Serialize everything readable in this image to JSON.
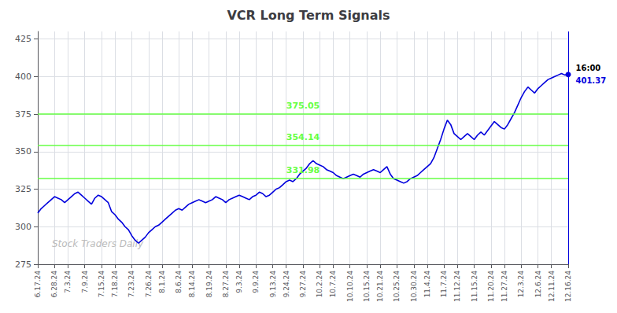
{
  "chart_data": {
    "type": "line",
    "title": "VCR Long Term Signals",
    "color": "#0000dd",
    "grid": true,
    "ylim": [
      275,
      430
    ],
    "yticks": [
      275,
      300,
      325,
      350,
      375,
      400,
      425
    ],
    "watermark": "Stock Traders Daily",
    "hlines": [
      {
        "value": 331.98,
        "label": "331.98",
        "color": "#66ff44"
      },
      {
        "value": 354.14,
        "label": "354.14",
        "color": "#66ff44"
      },
      {
        "value": 375.05,
        "label": "375.05",
        "color": "#66ff44"
      }
    ],
    "end": {
      "value": 401.37,
      "label": "401.37",
      "time": "16:00"
    },
    "categories": [
      "6.17.24",
      null,
      null,
      null,
      null,
      "6.28.24",
      null,
      null,
      null,
      "7.3.24",
      null,
      null,
      null,
      null,
      "7.9.24",
      null,
      null,
      null,
      null,
      "7.15.24",
      null,
      null,
      null,
      "7.18.24",
      null,
      null,
      null,
      null,
      "7.23.24",
      null,
      null,
      null,
      null,
      "7.26.24",
      null,
      null,
      null,
      "8.1.24",
      null,
      null,
      null,
      null,
      "8.6.24",
      null,
      null,
      null,
      "8.14.24",
      null,
      null,
      null,
      null,
      "8.19.24",
      null,
      null,
      null,
      null,
      "8.27.24",
      null,
      null,
      null,
      "9.3.24",
      null,
      null,
      null,
      null,
      "9.9.24",
      null,
      null,
      null,
      null,
      "9.13.24",
      null,
      null,
      null,
      "9.24.24",
      null,
      null,
      null,
      null,
      "9.27.24",
      null,
      null,
      null,
      null,
      "10.2.24",
      null,
      null,
      null,
      "10.7.24",
      null,
      null,
      null,
      null,
      "10.10.24",
      null,
      null,
      null,
      null,
      "10.15.24",
      null,
      null,
      null,
      "10.21.24",
      null,
      null,
      null,
      null,
      "10.25.24",
      null,
      null,
      null,
      null,
      "10.30.24",
      null,
      null,
      null,
      "11.4.24",
      null,
      null,
      null,
      null,
      "11.7.24",
      null,
      null,
      null,
      "11.12.24",
      null,
      null,
      null,
      null,
      "11.15.24",
      null,
      null,
      null,
      null,
      "11.20.24",
      null,
      null,
      null,
      "11.27.24",
      null,
      null,
      null,
      null,
      "12.3.24",
      null,
      null,
      null,
      null,
      "12.6.24",
      null,
      null,
      null,
      "12.11.24",
      null,
      null,
      null,
      null,
      "12.16.24"
    ],
    "values": [
      309,
      312,
      314,
      316,
      318,
      320,
      319,
      318,
      316,
      318,
      320,
      322,
      323,
      321,
      319,
      317,
      315,
      319,
      321,
      320,
      318,
      316,
      310,
      308,
      305,
      303,
      300,
      298,
      294,
      291,
      289,
      291,
      293,
      296,
      298,
      300,
      301,
      303,
      305,
      307,
      309,
      311,
      312,
      311,
      313,
      315,
      316,
      317,
      318,
      317,
      316,
      317,
      318,
      320,
      319,
      318,
      316,
      318,
      319,
      320,
      321,
      320,
      319,
      318,
      320,
      321,
      323,
      322,
      320,
      321,
      323,
      325,
      326,
      328,
      330,
      331,
      330,
      332,
      335,
      337,
      339,
      342,
      344,
      342,
      341,
      340,
      338,
      337,
      336,
      334,
      333,
      332,
      333,
      334,
      335,
      334,
      333,
      335,
      336,
      337,
      338,
      337,
      336,
      338,
      340,
      335,
      332,
      331,
      330,
      329,
      330,
      332,
      333,
      334,
      336,
      338,
      340,
      342,
      346,
      352,
      358,
      365,
      371,
      368,
      362,
      360,
      358,
      360,
      362,
      360,
      358,
      361,
      363,
      361,
      364,
      367,
      370,
      368,
      366,
      365,
      368,
      372,
      376,
      381,
      386,
      390,
      393,
      391,
      389,
      392,
      394,
      396,
      398,
      399,
      400,
      401,
      402,
      401,
      401.37
    ]
  }
}
